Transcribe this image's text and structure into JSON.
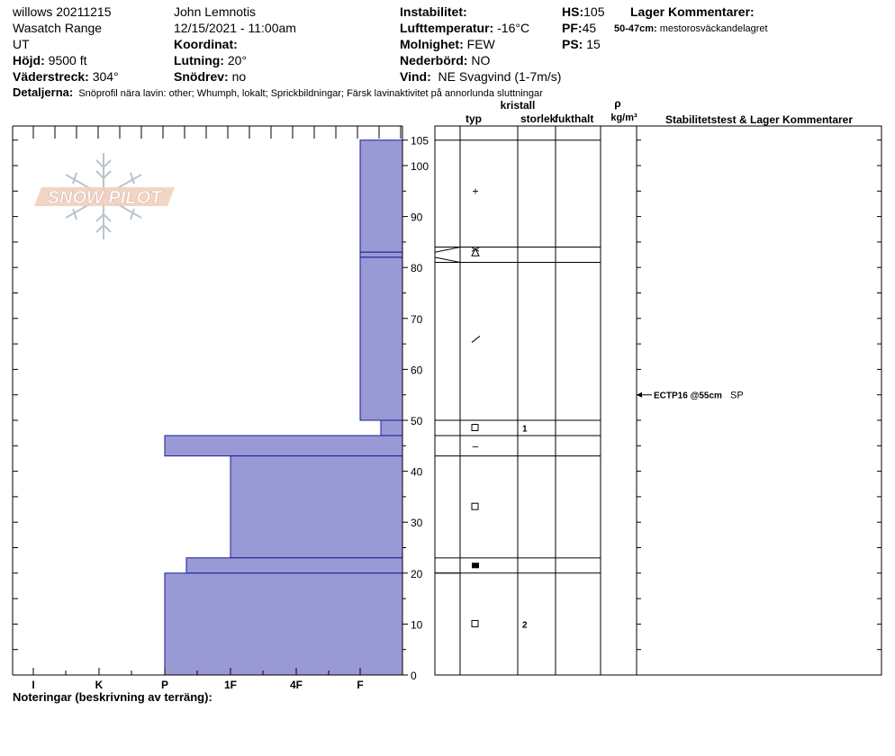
{
  "header": {
    "site": "willows 20211215",
    "range": "Wasatch Range",
    "state": "UT",
    "elevation_label": "Höjd:",
    "elevation_value": "9500 ft",
    "aspect_label": "Väderstreck:",
    "aspect_value": "304°",
    "observer": "John  Lemnotis",
    "datetime": "12/15/2021 - 11:00am",
    "coordinate_label": "Koordinat:",
    "coordinate_value": "",
    "slope_label": "Lutning:",
    "slope_value": "20°",
    "snowdrift_label": "Snödrev:",
    "snowdrift_value": "no",
    "instability_label": "Instabilitet:",
    "instability_value": "",
    "airtemp_label": "Lufttemperatur:",
    "airtemp_value": "-16°C",
    "sky_label": "Molnighet:",
    "sky_value": "FEW",
    "precip_label": "Nederbörd:",
    "precip_value": "NO",
    "wind_label": "Vind:",
    "wind_value": "NE Svagvind (1-7m/s)",
    "hs_label": "HS:",
    "hs_value": "105",
    "pf_label": "PF:",
    "pf_value": "45",
    "ps_label": "PS:",
    "ps_value": "15",
    "layer_comments_label": "Lager Kommentarer:",
    "layer_comment_range": "50-47cm:",
    "layer_comment_text": "mestorosväckandelagret",
    "details_label": "Detaljerna:",
    "details_text": "Snöprofil nära lavin: other;  Whumph, lokalt;  Sprickbildningar;  Färsk lavinaktivitet på annorlunda sluttningar",
    "notes_label": "Noteringar (beskrivning av terräng):"
  },
  "logo": {
    "text": "SNOW PILOT"
  },
  "columns": {
    "type": "typ",
    "crystal": "kristall",
    "size": "storlek",
    "moisture": "fukthalt",
    "rho": "ρ",
    "density_unit": "kg/m³",
    "stability": "Stabilitetstest & Lager Kommentarer"
  },
  "colors": {
    "hardness_fill": "#9999d6",
    "hardness_stroke": "#1a1a9a"
  },
  "chart_data": {
    "type": "bar",
    "description": "Snow profile hand hardness vs height",
    "y_unit": "cm",
    "ylim": [
      0,
      108
    ],
    "y_ticks": [
      0,
      10,
      20,
      30,
      40,
      50,
      60,
      70,
      80,
      90,
      100,
      105
    ],
    "hardness_scale": [
      "I",
      "K",
      "P",
      "1F",
      "4F",
      "F"
    ],
    "layers": [
      {
        "top": 105,
        "bottom": 83,
        "hardness": "F"
      },
      {
        "top": 83,
        "bottom": 82,
        "hardness": "F"
      },
      {
        "top": 82,
        "bottom": 50,
        "hardness": "F"
      },
      {
        "top": 50,
        "bottom": 47,
        "hardness": "F+"
      },
      {
        "top": 47,
        "bottom": 43,
        "hardness": "P"
      },
      {
        "top": 43,
        "bottom": 23,
        "hardness": "1F"
      },
      {
        "top": 23,
        "bottom": 20,
        "hardness": "P-"
      },
      {
        "top": 20,
        "bottom": 0,
        "hardness": "P"
      }
    ],
    "boundaries": [
      105,
      84,
      81,
      50,
      47,
      43,
      23,
      20
    ],
    "grain_symbols": [
      {
        "height": 95,
        "symbol": "+",
        "size": ""
      },
      {
        "height": 83,
        "symbol": "surface-hoar",
        "size": ""
      },
      {
        "height": 66,
        "symbol": "/",
        "size": ""
      },
      {
        "height": 48.5,
        "symbol": "□",
        "size": "1"
      },
      {
        "height": 45,
        "symbol": "–",
        "size": ""
      },
      {
        "height": 33,
        "symbol": "□",
        "size": ""
      },
      {
        "height": 21.5,
        "symbol": "■",
        "size": ""
      },
      {
        "height": 10,
        "symbol": "□",
        "size": "2"
      }
    ],
    "stability_tests": [
      {
        "height": 55,
        "text": "ECTP16 @55cm",
        "suffix": "SP"
      }
    ]
  }
}
